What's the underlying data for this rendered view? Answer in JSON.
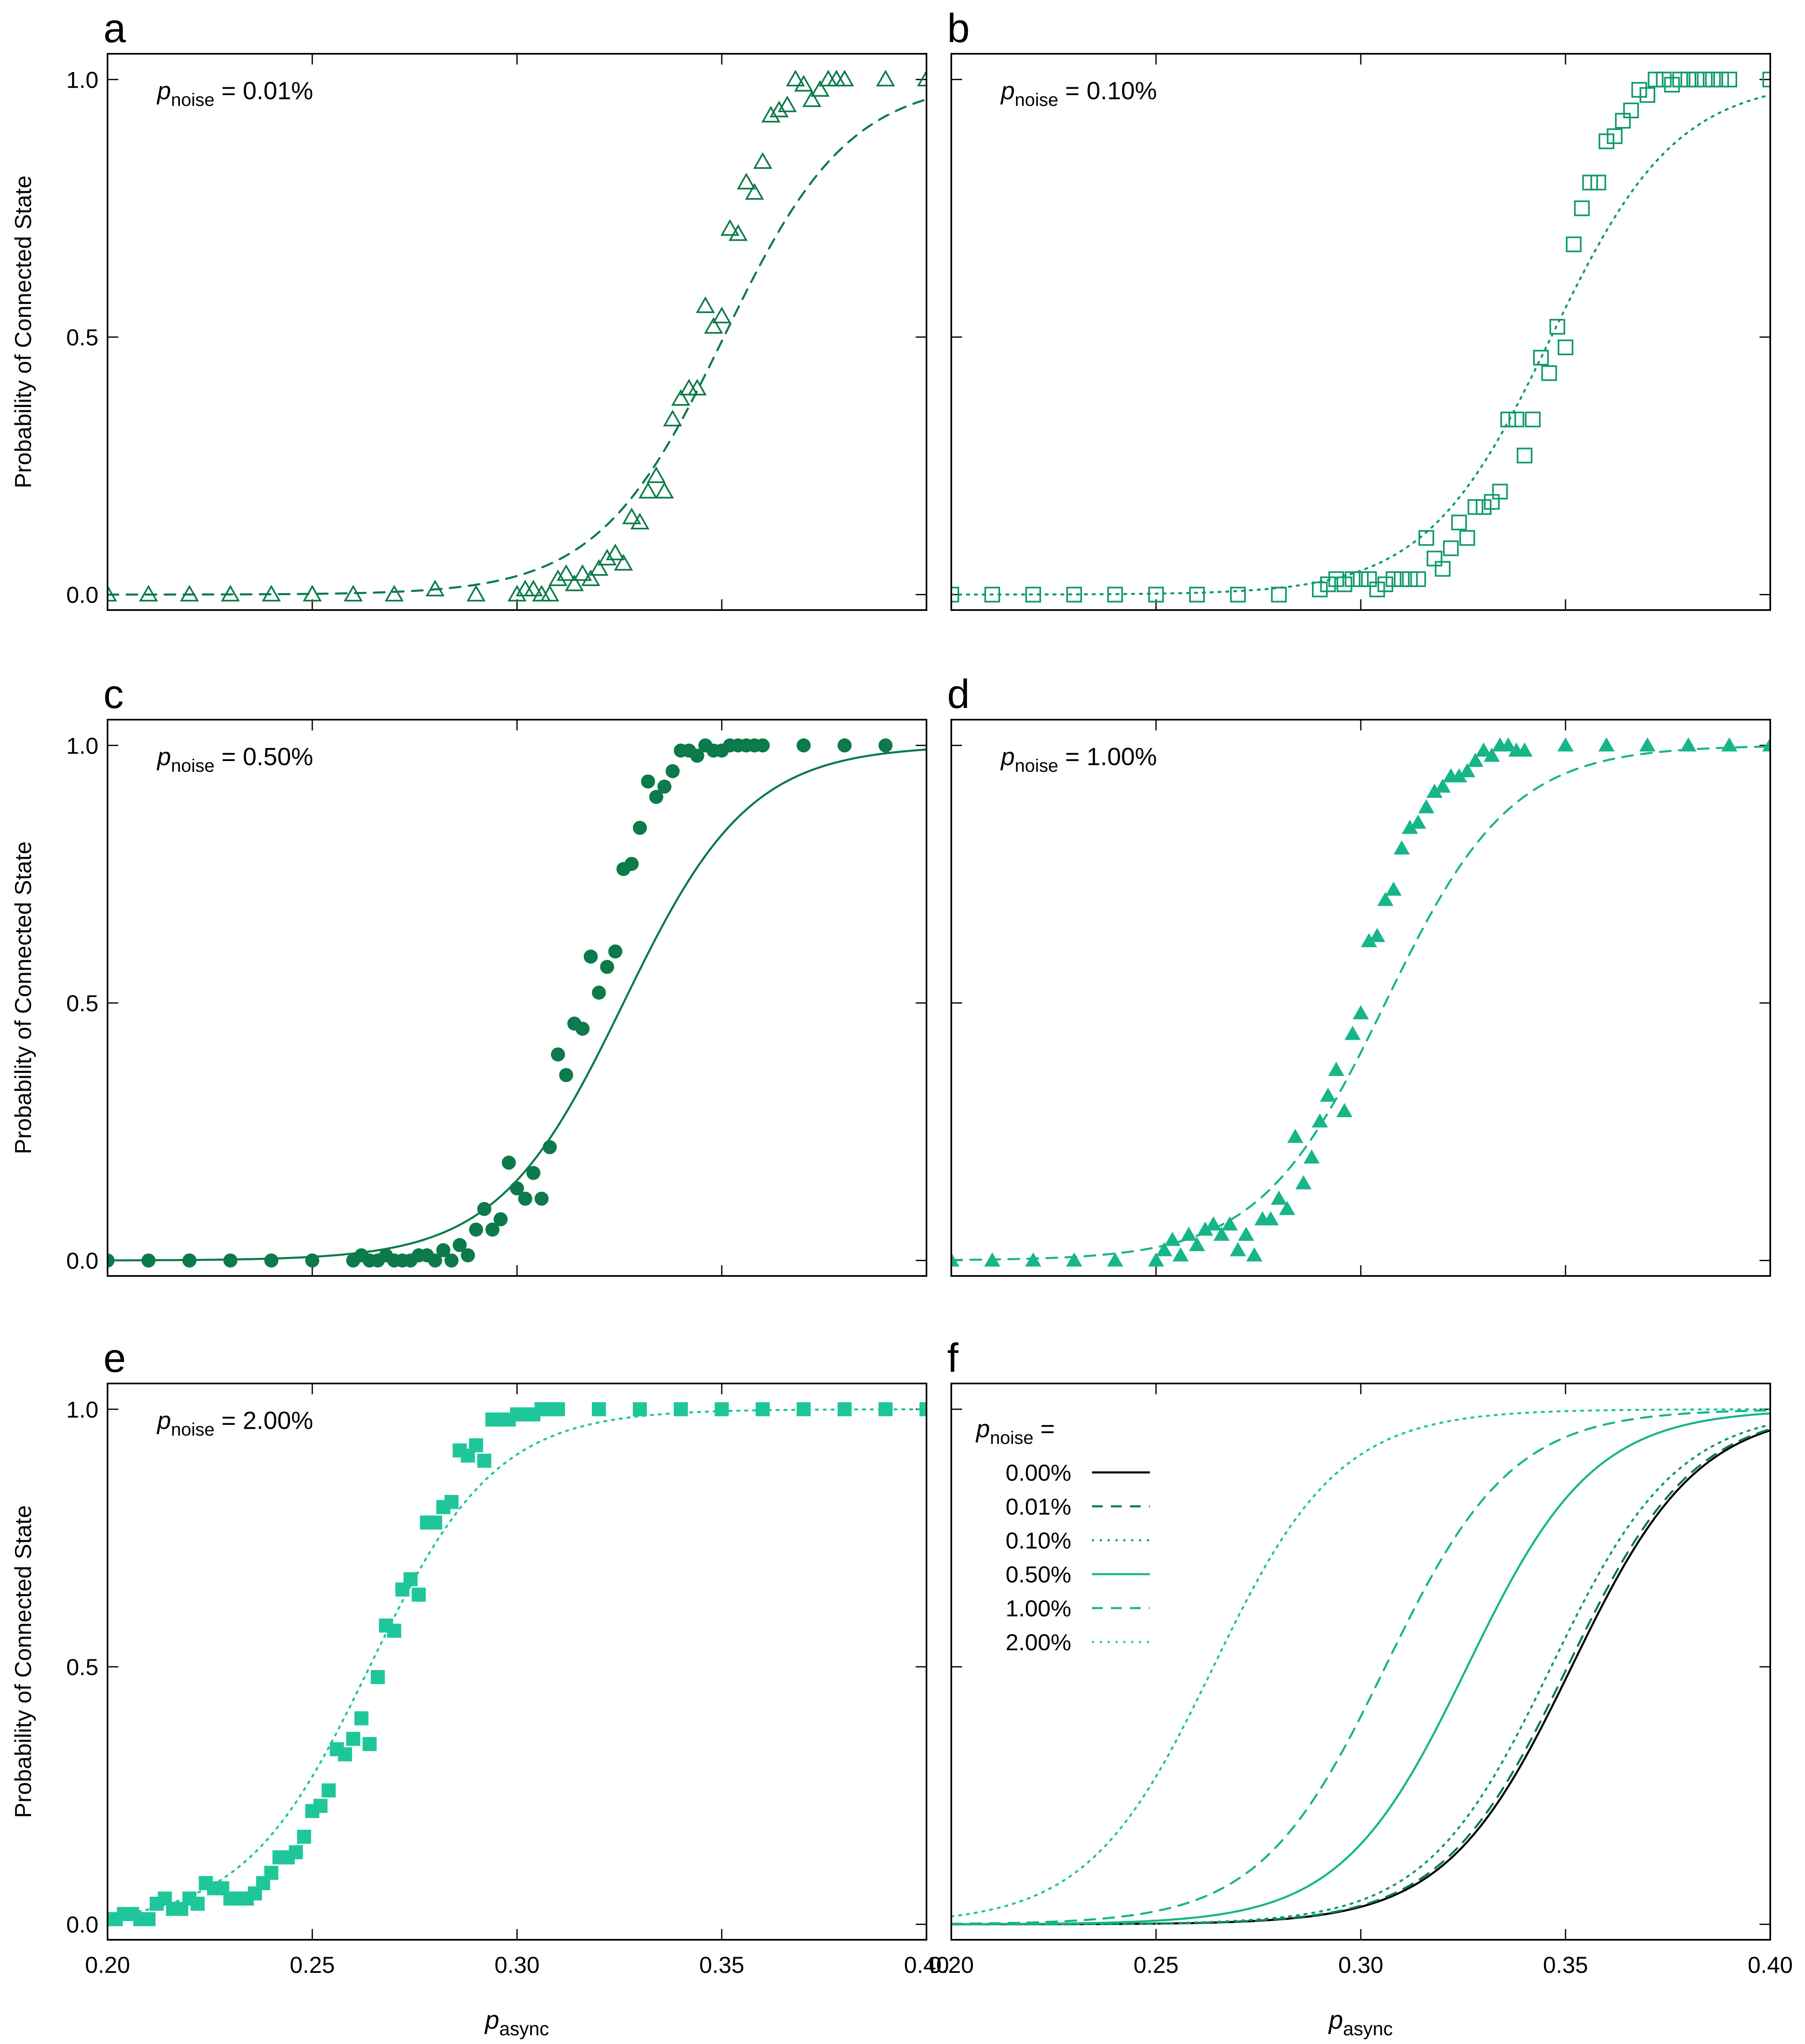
{
  "figure": {
    "ylabel": "Probability of Connected State",
    "xlabel_main": "p",
    "xlabel_sub": "async",
    "annotation_main": "p",
    "annotation_sub": "noise",
    "legend_title_suffix": "=",
    "x_ticks": [
      "0.20",
      "0.25",
      "0.30",
      "0.35",
      "0.40"
    ],
    "y_ticks": [
      "0.0",
      "0.5",
      "1.0"
    ],
    "colors": {
      "dark_green": "#0c7a4a",
      "mid_green": "#109a6a",
      "teal": "#17b58a",
      "light_teal": "#1fc69a",
      "black": "#000000"
    }
  },
  "chart_data": [
    {
      "panel": "a",
      "type": "scatter",
      "noise_label": "= 0.01%",
      "xlim": [
        0.2,
        0.4
      ],
      "ylim": [
        0,
        1
      ],
      "marker": "triangle-open",
      "line": "dashed",
      "color": "#0c7a4a",
      "fit": {
        "x0": 0.3505,
        "k": 65
      },
      "x": [
        0.2,
        0.21,
        0.22,
        0.23,
        0.24,
        0.25,
        0.26,
        0.27,
        0.28,
        0.29,
        0.3,
        0.302,
        0.304,
        0.306,
        0.308,
        0.31,
        0.312,
        0.314,
        0.316,
        0.318,
        0.32,
        0.322,
        0.324,
        0.326,
        0.328,
        0.33,
        0.332,
        0.334,
        0.336,
        0.338,
        0.34,
        0.342,
        0.344,
        0.346,
        0.348,
        0.35,
        0.352,
        0.354,
        0.356,
        0.358,
        0.36,
        0.362,
        0.364,
        0.366,
        0.368,
        0.37,
        0.372,
        0.374,
        0.376,
        0.378,
        0.38,
        0.39,
        0.4
      ],
      "y": [
        0.0,
        0.0,
        0.0,
        0.0,
        0.0,
        0.0,
        0.0,
        0.0,
        0.01,
        0.0,
        0.0,
        0.01,
        0.01,
        0.0,
        0.0,
        0.03,
        0.04,
        0.02,
        0.04,
        0.03,
        0.05,
        0.07,
        0.08,
        0.06,
        0.15,
        0.14,
        0.2,
        0.23,
        0.2,
        0.34,
        0.38,
        0.4,
        0.4,
        0.56,
        0.52,
        0.54,
        0.71,
        0.7,
        0.8,
        0.78,
        0.84,
        0.93,
        0.94,
        0.95,
        1.0,
        0.99,
        0.96,
        0.98,
        1.0,
        1.0,
        1.0,
        1.0,
        1.0
      ]
    },
    {
      "panel": "b",
      "type": "scatter",
      "noise_label": "= 0.10%",
      "xlim": [
        0.2,
        0.4
      ],
      "ylim": [
        0,
        1
      ],
      "marker": "square-open",
      "line": "dotted",
      "color": "#109a6a",
      "fit": {
        "x0": 0.3465,
        "k": 65
      },
      "x": [
        0.2,
        0.21,
        0.22,
        0.23,
        0.24,
        0.25,
        0.26,
        0.27,
        0.28,
        0.29,
        0.292,
        0.294,
        0.296,
        0.298,
        0.3,
        0.302,
        0.304,
        0.306,
        0.308,
        0.31,
        0.312,
        0.314,
        0.316,
        0.318,
        0.32,
        0.322,
        0.324,
        0.326,
        0.328,
        0.33,
        0.332,
        0.334,
        0.336,
        0.338,
        0.34,
        0.342,
        0.344,
        0.346,
        0.348,
        0.35,
        0.352,
        0.354,
        0.356,
        0.358,
        0.36,
        0.362,
        0.364,
        0.366,
        0.368,
        0.37,
        0.372,
        0.374,
        0.376,
        0.378,
        0.38,
        0.382,
        0.384,
        0.386,
        0.388,
        0.39,
        0.4
      ],
      "y": [
        0.0,
        0.0,
        0.0,
        0.0,
        0.0,
        0.0,
        0.0,
        0.0,
        0.0,
        0.01,
        0.02,
        0.03,
        0.02,
        0.03,
        0.03,
        0.03,
        0.01,
        0.02,
        0.03,
        0.03,
        0.03,
        0.03,
        0.11,
        0.07,
        0.05,
        0.09,
        0.14,
        0.11,
        0.17,
        0.17,
        0.18,
        0.2,
        0.34,
        0.34,
        0.27,
        0.34,
        0.46,
        0.43,
        0.52,
        0.48,
        0.68,
        0.75,
        0.8,
        0.8,
        0.88,
        0.89,
        0.92,
        0.94,
        0.98,
        0.97,
        1.0,
        1.0,
        0.99,
        1.0,
        1.0,
        1.0,
        1.0,
        1.0,
        1.0,
        1.0,
        1.0
      ]
    },
    {
      "panel": "c",
      "type": "scatter",
      "noise_label": "= 0.50%",
      "xlim": [
        0.2,
        0.4
      ],
      "ylim": [
        0,
        1
      ],
      "marker": "circle-filled",
      "line": "solid",
      "color": "#0c7a4a",
      "fit": {
        "x0": 0.326,
        "k": 65
      },
      "x": [
        0.2,
        0.21,
        0.22,
        0.23,
        0.24,
        0.25,
        0.26,
        0.262,
        0.264,
        0.266,
        0.268,
        0.27,
        0.272,
        0.274,
        0.276,
        0.278,
        0.28,
        0.282,
        0.284,
        0.286,
        0.288,
        0.29,
        0.292,
        0.294,
        0.296,
        0.298,
        0.3,
        0.302,
        0.304,
        0.306,
        0.308,
        0.31,
        0.312,
        0.314,
        0.316,
        0.318,
        0.32,
        0.322,
        0.324,
        0.326,
        0.328,
        0.33,
        0.332,
        0.334,
        0.336,
        0.338,
        0.34,
        0.342,
        0.344,
        0.346,
        0.348,
        0.35,
        0.352,
        0.354,
        0.356,
        0.358,
        0.36,
        0.37,
        0.38,
        0.39
      ],
      "y": [
        0.0,
        0.0,
        0.0,
        0.0,
        0.0,
        0.0,
        0.0,
        0.01,
        0.0,
        0.0,
        0.01,
        0.0,
        0.0,
        0.0,
        0.01,
        0.01,
        0.0,
        0.02,
        0.0,
        0.03,
        0.01,
        0.06,
        0.1,
        0.06,
        0.08,
        0.19,
        0.14,
        0.12,
        0.17,
        0.12,
        0.22,
        0.4,
        0.36,
        0.46,
        0.45,
        0.59,
        0.52,
        0.57,
        0.6,
        0.76,
        0.77,
        0.84,
        0.93,
        0.9,
        0.92,
        0.95,
        0.99,
        0.99,
        0.98,
        1.0,
        0.99,
        0.99,
        1.0,
        1.0,
        1.0,
        1.0,
        1.0,
        1.0,
        1.0,
        1.0
      ]
    },
    {
      "panel": "d",
      "type": "scatter",
      "noise_label": "= 1.00%",
      "xlim": [
        0.2,
        0.4
      ],
      "ylim": [
        0,
        1
      ],
      "marker": "triangle-filled",
      "line": "dashed",
      "color": "#17b58a",
      "fit": {
        "x0": 0.306,
        "k": 65
      },
      "x": [
        0.2,
        0.21,
        0.22,
        0.23,
        0.24,
        0.25,
        0.252,
        0.254,
        0.256,
        0.258,
        0.26,
        0.262,
        0.264,
        0.266,
        0.268,
        0.27,
        0.272,
        0.274,
        0.276,
        0.278,
        0.28,
        0.282,
        0.284,
        0.286,
        0.288,
        0.29,
        0.292,
        0.294,
        0.296,
        0.298,
        0.3,
        0.302,
        0.304,
        0.306,
        0.308,
        0.31,
        0.312,
        0.314,
        0.316,
        0.318,
        0.32,
        0.322,
        0.324,
        0.326,
        0.328,
        0.33,
        0.332,
        0.334,
        0.336,
        0.338,
        0.34,
        0.35,
        0.36,
        0.37,
        0.38,
        0.39,
        0.4
      ],
      "y": [
        0.0,
        0.0,
        0.0,
        0.0,
        0.0,
        0.0,
        0.02,
        0.04,
        0.01,
        0.05,
        0.03,
        0.06,
        0.07,
        0.05,
        0.07,
        0.02,
        0.05,
        0.01,
        0.08,
        0.08,
        0.12,
        0.1,
        0.24,
        0.15,
        0.2,
        0.27,
        0.32,
        0.37,
        0.29,
        0.44,
        0.48,
        0.62,
        0.63,
        0.7,
        0.72,
        0.8,
        0.84,
        0.85,
        0.88,
        0.91,
        0.92,
        0.94,
        0.94,
        0.95,
        0.97,
        0.99,
        0.98,
        1.0,
        1.0,
        0.99,
        0.99,
        1.0,
        1.0,
        1.0,
        1.0,
        1.0,
        1.0
      ]
    },
    {
      "panel": "e",
      "type": "scatter",
      "noise_label": "= 2.00%",
      "xlim": [
        0.2,
        0.4
      ],
      "ylim": [
        0,
        1
      ],
      "marker": "square-filled",
      "line": "dotted",
      "color": "#1fc69a",
      "fit": {
        "x0": 0.264,
        "k": 65
      },
      "x": [
        0.2,
        0.202,
        0.204,
        0.206,
        0.208,
        0.21,
        0.212,
        0.214,
        0.216,
        0.218,
        0.22,
        0.222,
        0.224,
        0.226,
        0.228,
        0.23,
        0.232,
        0.234,
        0.236,
        0.238,
        0.24,
        0.242,
        0.244,
        0.246,
        0.248,
        0.25,
        0.252,
        0.254,
        0.256,
        0.258,
        0.26,
        0.262,
        0.264,
        0.266,
        0.268,
        0.27,
        0.272,
        0.274,
        0.276,
        0.278,
        0.28,
        0.282,
        0.284,
        0.286,
        0.288,
        0.29,
        0.292,
        0.294,
        0.296,
        0.298,
        0.3,
        0.302,
        0.304,
        0.306,
        0.308,
        0.31,
        0.32,
        0.33,
        0.34,
        0.35,
        0.36,
        0.37,
        0.38,
        0.39,
        0.4
      ],
      "y": [
        0.01,
        0.01,
        0.02,
        0.02,
        0.01,
        0.01,
        0.04,
        0.05,
        0.03,
        0.03,
        0.05,
        0.04,
        0.08,
        0.07,
        0.07,
        0.05,
        0.05,
        0.05,
        0.06,
        0.08,
        0.1,
        0.13,
        0.13,
        0.14,
        0.17,
        0.22,
        0.23,
        0.26,
        0.34,
        0.33,
        0.36,
        0.4,
        0.35,
        0.48,
        0.58,
        0.57,
        0.65,
        0.67,
        0.64,
        0.78,
        0.78,
        0.81,
        0.82,
        0.92,
        0.91,
        0.93,
        0.9,
        0.98,
        0.98,
        0.98,
        0.99,
        0.99,
        0.99,
        1.0,
        1.0,
        1.0,
        1.0,
        1.0,
        1.0,
        1.0,
        1.0,
        1.0,
        1.0,
        1.0,
        1.0
      ]
    },
    {
      "panel": "f",
      "type": "line",
      "xlim": [
        0.2,
        0.4
      ],
      "ylim": [
        0,
        1
      ],
      "legend_position": "top-left",
      "series": [
        {
          "name": "0.00%",
          "x0": 0.3515,
          "k": 65,
          "line": "solid",
          "color": "#000000"
        },
        {
          "name": "0.01%",
          "x0": 0.3505,
          "k": 65,
          "line": "dashed",
          "color": "#0c7a4a"
        },
        {
          "name": "0.10%",
          "x0": 0.3465,
          "k": 65,
          "line": "dotted",
          "color": "#109a6a"
        },
        {
          "name": "0.50%",
          "x0": 0.326,
          "k": 65,
          "line": "solid",
          "color": "#17b58a"
        },
        {
          "name": "1.00%",
          "x0": 0.306,
          "k": 65,
          "line": "dashed",
          "color": "#17b58a"
        },
        {
          "name": "2.00%",
          "x0": 0.264,
          "k": 65,
          "line": "dotted",
          "color": "#1fc69a"
        }
      ]
    }
  ]
}
